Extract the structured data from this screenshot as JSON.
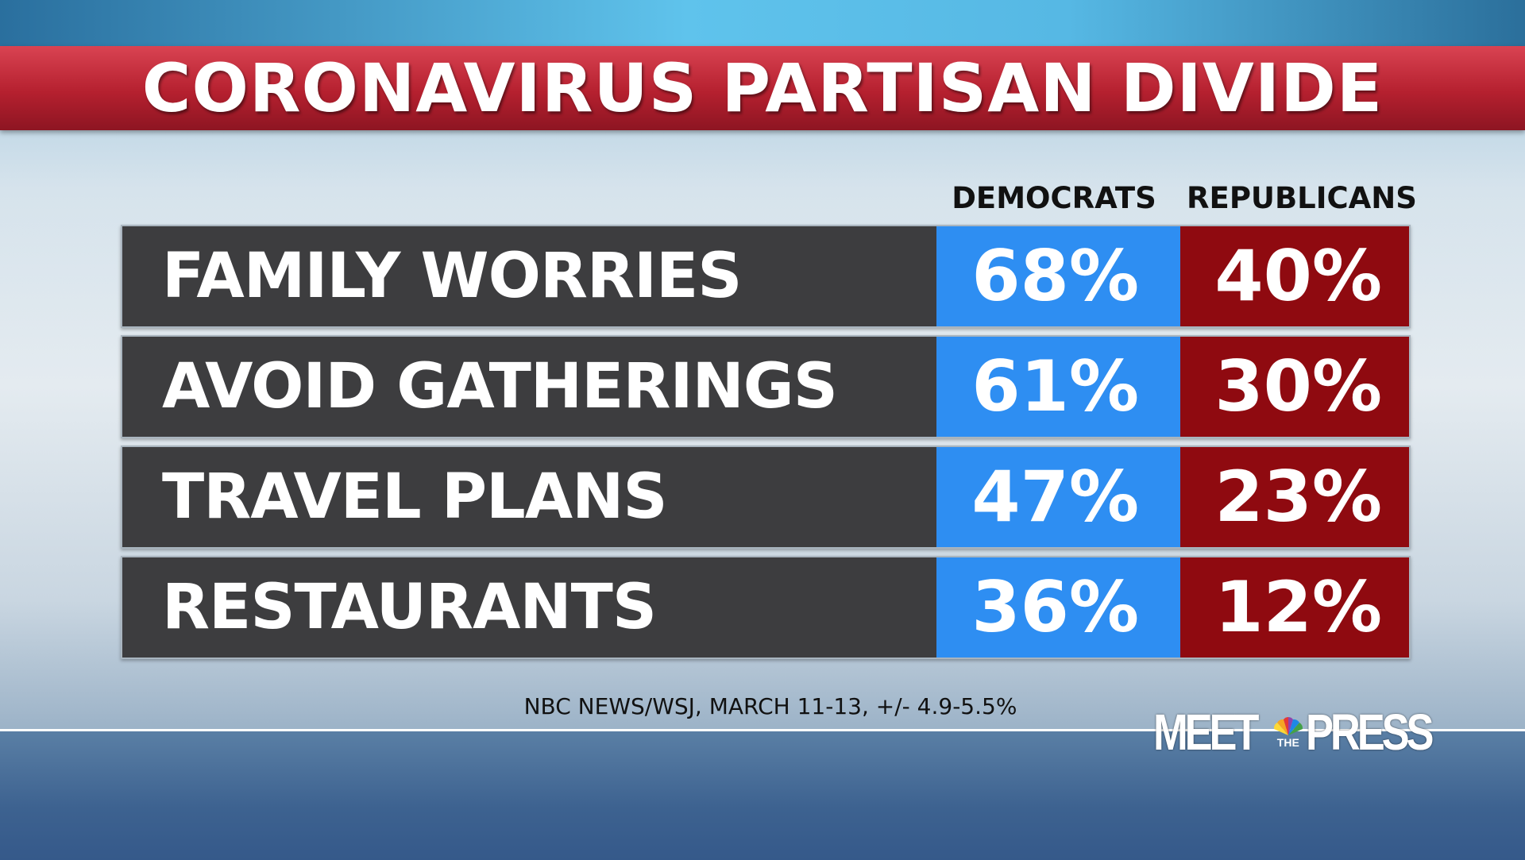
{
  "title": "CORONAVIRUS PARTISAN DIVIDE",
  "columns": {
    "democrats": "DEMOCRATS",
    "republicans": "REPUBLICANS"
  },
  "rows": [
    {
      "label": "FAMILY WORRIES",
      "democrats": "68%",
      "republicans": "40%"
    },
    {
      "label": "AVOID GATHERINGS",
      "democrats": "61%",
      "republicans": "30%"
    },
    {
      "label": "TRAVEL PLANS",
      "democrats": "47%",
      "republicans": "23%"
    },
    {
      "label": "RESTAURANTS",
      "democrats": "36%",
      "republicans": "12%"
    }
  ],
  "source": "NBC NEWS/WSJ, MARCH 11-13, +/- 4.9-5.5%",
  "logo": {
    "word1": "MEET",
    "word2": "THE",
    "word3": "PRESS"
  },
  "colors": {
    "democrats": "#2e8ef2",
    "republicans": "#8f0a10",
    "title_bar": "#b5202f",
    "row_bg": "#3d3d3f"
  },
  "chart_data": {
    "type": "table",
    "title": "CORONAVIRUS PARTISAN DIVIDE",
    "categories": [
      "FAMILY WORRIES",
      "AVOID GATHERINGS",
      "TRAVEL PLANS",
      "RESTAURANTS"
    ],
    "series": [
      {
        "name": "DEMOCRATS",
        "values": [
          68,
          61,
          47,
          36
        ]
      },
      {
        "name": "REPUBLICANS",
        "values": [
          40,
          30,
          23,
          12
        ]
      }
    ],
    "unit": "%"
  }
}
